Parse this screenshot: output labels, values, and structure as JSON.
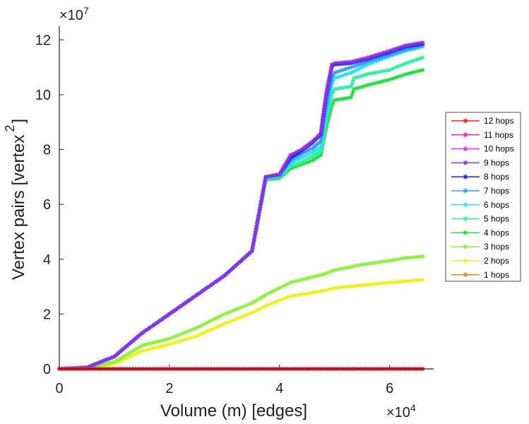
{
  "chart_data": {
    "type": "line",
    "title": "",
    "xlabel": "Volume (m) [edges]",
    "ylabel": "Vertex pairs [vertex",
    "ylabel_sup": "2",
    "ylabel_close": "]",
    "x_exponent": {
      "base": "×10",
      "exp": "4"
    },
    "y_exponent": {
      "base": "×10",
      "exp": "7"
    },
    "xlim": [
      0,
      6.8
    ],
    "ylim": [
      0,
      12.5
    ],
    "xticks": [
      0,
      2,
      4,
      6
    ],
    "xtick_labels": [
      "0",
      "2",
      "4",
      "6"
    ],
    "yticks": [
      0,
      2,
      4,
      6,
      8,
      10,
      12
    ],
    "ytick_labels": [
      "0",
      "2",
      "4",
      "6",
      "8",
      "10",
      "12"
    ],
    "legend_position": "right",
    "marker": "asterisk",
    "series": [
      {
        "name": "12 hops",
        "color": "#ff2020",
        "x": [
          0,
          6.6
        ],
        "y": [
          0,
          0
        ]
      },
      {
        "name": "11 hops",
        "color": "#ff20a0",
        "x": [
          0,
          6.6
        ],
        "y": [
          0,
          0
        ]
      },
      {
        "name": "10 hops",
        "color": "#e030f0",
        "x": [
          0,
          6.6
        ],
        "y": [
          0,
          0
        ]
      },
      {
        "name": "9 hops",
        "color": "#8a30f0",
        "x": [
          0,
          0.5,
          1.0,
          1.5,
          2.0,
          2.5,
          3.0,
          3.5,
          3.75,
          4.0,
          4.2,
          4.4,
          4.6,
          4.75,
          4.85,
          4.95,
          5.0,
          5.3,
          5.6,
          6.0,
          6.3,
          6.6
        ],
        "y": [
          0,
          0.05,
          0.45,
          1.3,
          2.0,
          2.7,
          3.4,
          4.3,
          7.0,
          7.1,
          7.8,
          8.0,
          8.3,
          8.6,
          10.1,
          11.1,
          11.15,
          11.2,
          11.35,
          11.6,
          11.8,
          11.9
        ]
      },
      {
        "name": "8 hops",
        "color": "#2020e0",
        "x": [
          0,
          0.5,
          1.0,
          1.5,
          2.0,
          2.5,
          3.0,
          3.5,
          3.75,
          4.0,
          4.2,
          4.4,
          4.6,
          4.75,
          4.85,
          4.95,
          5.0,
          5.3,
          5.6,
          6.0,
          6.3,
          6.6
        ],
        "y": [
          0,
          0.05,
          0.45,
          1.3,
          2.0,
          2.7,
          3.4,
          4.3,
          7.0,
          7.1,
          7.7,
          7.95,
          8.25,
          8.55,
          10.0,
          11.0,
          11.1,
          11.15,
          11.3,
          11.55,
          11.75,
          11.85
        ]
      },
      {
        "name": "7 hops",
        "color": "#30a0f0",
        "x": [
          0,
          0.5,
          1.0,
          1.5,
          2.0,
          2.5,
          3.0,
          3.5,
          3.75,
          4.0,
          4.2,
          4.4,
          4.6,
          4.75,
          4.85,
          4.95,
          5.0,
          5.3,
          5.6,
          6.0,
          6.3,
          6.6
        ],
        "y": [
          0,
          0.05,
          0.45,
          1.3,
          2.0,
          2.7,
          3.4,
          4.3,
          7.0,
          7.05,
          7.6,
          7.85,
          8.05,
          8.3,
          9.6,
          10.6,
          10.8,
          11.0,
          11.2,
          11.45,
          11.65,
          11.8
        ]
      },
      {
        "name": "6 hops",
        "color": "#30e0f0",
        "x": [
          0,
          0.5,
          1.0,
          1.5,
          2.0,
          2.5,
          3.0,
          3.5,
          3.75,
          4.0,
          4.2,
          4.4,
          4.6,
          4.75,
          4.85,
          4.95,
          5.0,
          5.3,
          5.6,
          6.0,
          6.3,
          6.6
        ],
        "y": [
          0,
          0.05,
          0.45,
          1.3,
          2.0,
          2.7,
          3.4,
          4.3,
          7.0,
          7.0,
          7.5,
          7.7,
          7.9,
          8.1,
          9.3,
          10.4,
          10.6,
          10.8,
          11.1,
          11.4,
          11.6,
          11.75
        ]
      },
      {
        "name": "5 hops",
        "color": "#30f0a0",
        "x": [
          0,
          0.5,
          1.0,
          1.5,
          2.0,
          2.5,
          3.0,
          3.5,
          3.75,
          4.0,
          4.2,
          4.4,
          4.6,
          4.75,
          4.85,
          4.95,
          5.0,
          5.3,
          5.35,
          5.6,
          6.0,
          6.3,
          6.6
        ],
        "y": [
          0,
          0.05,
          0.45,
          1.3,
          2.0,
          2.7,
          3.4,
          4.3,
          6.95,
          7.0,
          7.4,
          7.55,
          7.75,
          7.95,
          9.1,
          10.0,
          10.2,
          10.3,
          10.6,
          10.75,
          10.9,
          11.15,
          11.35
        ]
      },
      {
        "name": "4 hops",
        "color": "#20e040",
        "x": [
          0,
          0.5,
          1.0,
          1.5,
          2.0,
          2.5,
          3.0,
          3.5,
          3.75,
          4.0,
          4.2,
          4.4,
          4.6,
          4.75,
          4.85,
          4.95,
          5.0,
          5.3,
          5.35,
          5.6,
          6.0,
          6.3,
          6.6
        ],
        "y": [
          0,
          0.05,
          0.45,
          1.3,
          2.0,
          2.7,
          3.4,
          4.3,
          6.9,
          6.95,
          7.3,
          7.45,
          7.6,
          7.8,
          8.8,
          9.6,
          9.8,
          9.9,
          10.2,
          10.35,
          10.55,
          10.75,
          10.9
        ]
      },
      {
        "name": "3 hops",
        "color": "#90f040",
        "x": [
          0,
          0.5,
          1.0,
          1.5,
          2.0,
          2.5,
          3.0,
          3.5,
          3.75,
          4.0,
          4.2,
          4.5,
          4.8,
          5.0,
          5.5,
          6.0,
          6.3,
          6.6
        ],
        "y": [
          0,
          0.02,
          0.25,
          0.85,
          1.1,
          1.5,
          2.0,
          2.4,
          2.7,
          2.95,
          3.15,
          3.3,
          3.45,
          3.6,
          3.8,
          3.95,
          4.05,
          4.1
        ]
      },
      {
        "name": "2 hops",
        "color": "#f0f020",
        "x": [
          0,
          0.5,
          1.0,
          1.5,
          2.0,
          2.5,
          3.0,
          3.5,
          3.75,
          4.0,
          4.2,
          4.5,
          4.8,
          5.0,
          5.5,
          6.0,
          6.3,
          6.6
        ],
        "y": [
          0,
          0.02,
          0.18,
          0.65,
          0.9,
          1.2,
          1.65,
          2.05,
          2.3,
          2.5,
          2.65,
          2.75,
          2.85,
          2.95,
          3.05,
          3.15,
          3.2,
          3.25
        ]
      },
      {
        "name": "1 hops",
        "color": "#f08020",
        "x": [
          0,
          6.6
        ],
        "y": [
          0,
          0
        ]
      }
    ]
  }
}
